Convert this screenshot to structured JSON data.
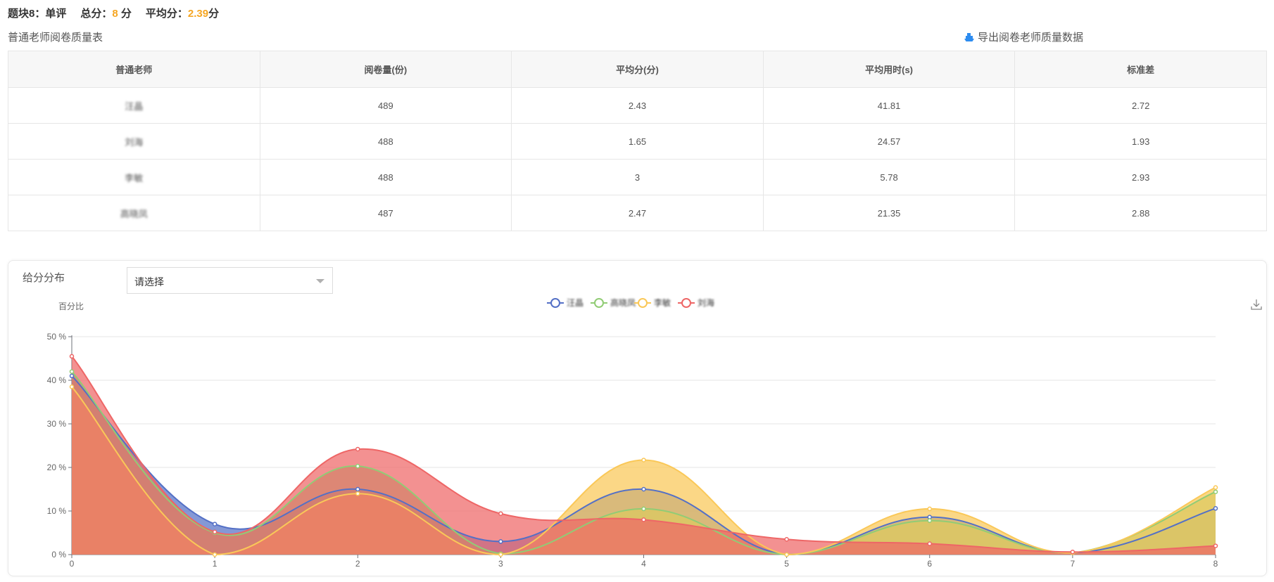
{
  "summary": {
    "block_label": "题块8：单评",
    "total_label": "总分：",
    "total_value": "8",
    "total_unit": "分",
    "avg_label": "平均分：",
    "avg_value": "2.39",
    "avg_unit": "分"
  },
  "table": {
    "title": "普通老师阅卷质量表",
    "export_label": "导出阅卷老师质量数据",
    "headers": [
      "普通老师",
      "阅卷量(份)",
      "平均分(分)",
      "平均用时(s)",
      "标准差"
    ],
    "rows": [
      [
        "汪晶",
        "489",
        "2.43",
        "41.81",
        "2.72"
      ],
      [
        "刘海",
        "488",
        "1.65",
        "24.57",
        "1.93"
      ],
      [
        "李敏",
        "488",
        "3",
        "5.78",
        "2.93"
      ],
      [
        "高晓凤",
        "487",
        "2.47",
        "21.35",
        "2.88"
      ]
    ]
  },
  "panel": {
    "title": "给分分布",
    "select_value": "请选择",
    "download_icon": "download-icon"
  },
  "chart_data": {
    "type": "area",
    "ylabel": "百分比",
    "x": [
      0,
      1,
      2,
      3,
      4,
      5,
      6,
      7,
      8
    ],
    "yticks": [
      "0 %",
      "10 %",
      "20 %",
      "30 %",
      "40 %",
      "50 %"
    ],
    "ylim": [
      0,
      50
    ],
    "grid": true,
    "legend_position": "top-center",
    "series": [
      {
        "name": "汪晶",
        "color": "#5470c6",
        "values": [
          41,
          7,
          15,
          3,
          15,
          0,
          8.6,
          0.4,
          10.6
        ]
      },
      {
        "name": "高晓凤",
        "color": "#91cc75",
        "values": [
          42,
          5,
          20.3,
          0.2,
          10.5,
          0,
          7.8,
          0.4,
          14.4
        ]
      },
      {
        "name": "李敏",
        "color": "#fac858",
        "values": [
          38.5,
          0,
          14,
          0,
          21.7,
          0,
          10.5,
          0.4,
          15.4
        ]
      },
      {
        "name": "刘海",
        "color": "#ee6666",
        "values": [
          45.5,
          5.2,
          24.2,
          9.4,
          8,
          3.5,
          2.5,
          0.6,
          2
        ]
      }
    ]
  }
}
